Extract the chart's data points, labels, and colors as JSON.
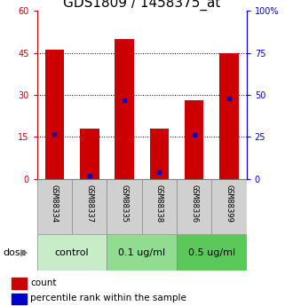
{
  "title": "GDS1809 / 1458375_at",
  "samples": [
    "GSM88334",
    "GSM88337",
    "GSM88335",
    "GSM88338",
    "GSM88336",
    "GSM88399"
  ],
  "count_values": [
    46,
    18,
    50,
    18,
    28,
    45
  ],
  "percentile_values": [
    27,
    2,
    47,
    4,
    26,
    48
  ],
  "groups": [
    {
      "label": "control",
      "indices": [
        0,
        1
      ],
      "color": "#c8ecc8"
    },
    {
      "label": "0.1 ug/ml",
      "indices": [
        2,
        3
      ],
      "color": "#90dc90"
    },
    {
      "label": "0.5 ug/ml",
      "indices": [
        4,
        5
      ],
      "color": "#5ac85a"
    }
  ],
  "ylim_left": [
    0,
    60
  ],
  "ylim_right": [
    0,
    100
  ],
  "yticks_left": [
    0,
    15,
    30,
    45,
    60
  ],
  "yticks_right": [
    0,
    25,
    50,
    75,
    100
  ],
  "bar_color": "#cc0000",
  "dot_color": "#0000cc",
  "bar_width": 0.55,
  "left_tick_color": "#cc0000",
  "right_tick_color": "#0000cc",
  "title_fontsize": 11,
  "tick_label_fontsize": 7,
  "group_label_fontsize": 8,
  "sample_label_fontsize": 6.5,
  "legend_fontsize": 7.5,
  "sample_box_color": "#d0d0d0",
  "dose_arrow_color": "#808080"
}
